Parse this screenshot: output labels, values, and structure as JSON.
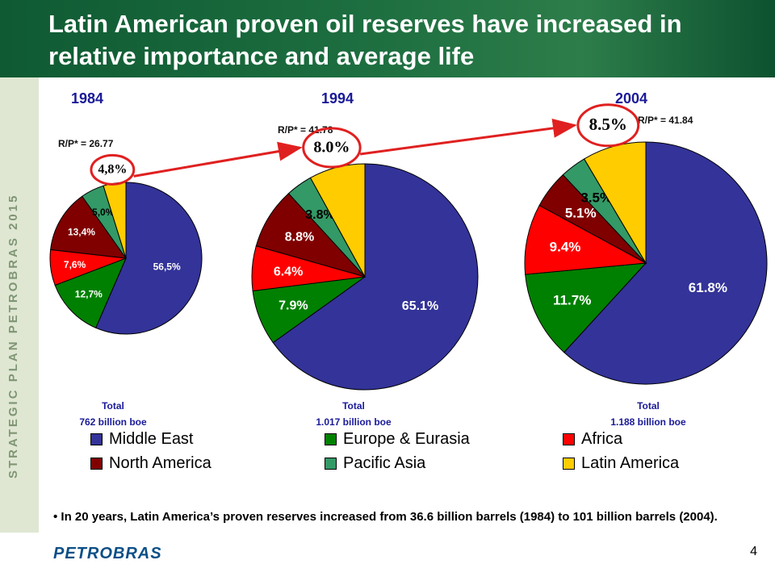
{
  "header": {
    "title": "Latin American proven oil reserves have increased in relative importance and average life"
  },
  "sidebar": {
    "text": "STRATEGIC PLAN PETROBRAS 2015"
  },
  "footer": {
    "logo": "PETROBRAS",
    "page": "4"
  },
  "note": "• In 20 years, Latin America’s proven reserves increased from 36.6 billion barrels (1984) to 101 billion barrels (2004).",
  "colors": {
    "Middle East": "#333399",
    "Europe & Eurasia": "#008000",
    "Africa": "#ff0000",
    "North America": "#800000",
    "Pacific Asia": "#339966",
    "Latin America": "#ffcc00"
  },
  "chart_data": [
    {
      "type": "pie",
      "title": "1984",
      "rp": "R/P* = 26.77",
      "total_label": "Total",
      "total_value": "762 billion boe",
      "categories": [
        "Middle East",
        "Europe & Eurasia",
        "Africa",
        "North America",
        "Pacific Asia",
        "Latin America"
      ],
      "values": [
        56.5,
        12.7,
        7.6,
        13.4,
        5.0,
        4.8
      ],
      "labels": [
        "56,5%",
        "12,7%",
        "7,6%",
        "13,4%",
        "5,0%",
        "4,8%"
      ]
    },
    {
      "type": "pie",
      "title": "1994",
      "rp": "R/P* = 41.78",
      "total_label": "Total",
      "total_value": "1.017 billion boe",
      "categories": [
        "Middle East",
        "Europe & Eurasia",
        "Africa",
        "North America",
        "Pacific Asia",
        "Latin America"
      ],
      "values": [
        65.1,
        7.9,
        6.4,
        8.8,
        3.8,
        8.0
      ],
      "labels": [
        "65.1%",
        "7.9%",
        "6.4%",
        "8.8%",
        "3.8%",
        "8.0%"
      ]
    },
    {
      "type": "pie",
      "title": "2004",
      "rp": "R/P* = 41.84",
      "total_label": "Total",
      "total_value": "1.188 billion boe",
      "categories": [
        "Middle East",
        "Europe & Eurasia",
        "Africa",
        "North America",
        "Pacific Asia",
        "Latin America"
      ],
      "values": [
        61.8,
        11.7,
        9.4,
        5.1,
        3.5,
        8.5
      ],
      "labels": [
        "61.8%",
        "11.7%",
        "9.4%",
        "5.1%",
        "3.5%",
        "8.5%"
      ]
    }
  ],
  "legend": [
    "Middle East",
    "Europe & Eurasia",
    "Africa",
    "North America",
    "Pacific Asia",
    "Latin America"
  ]
}
